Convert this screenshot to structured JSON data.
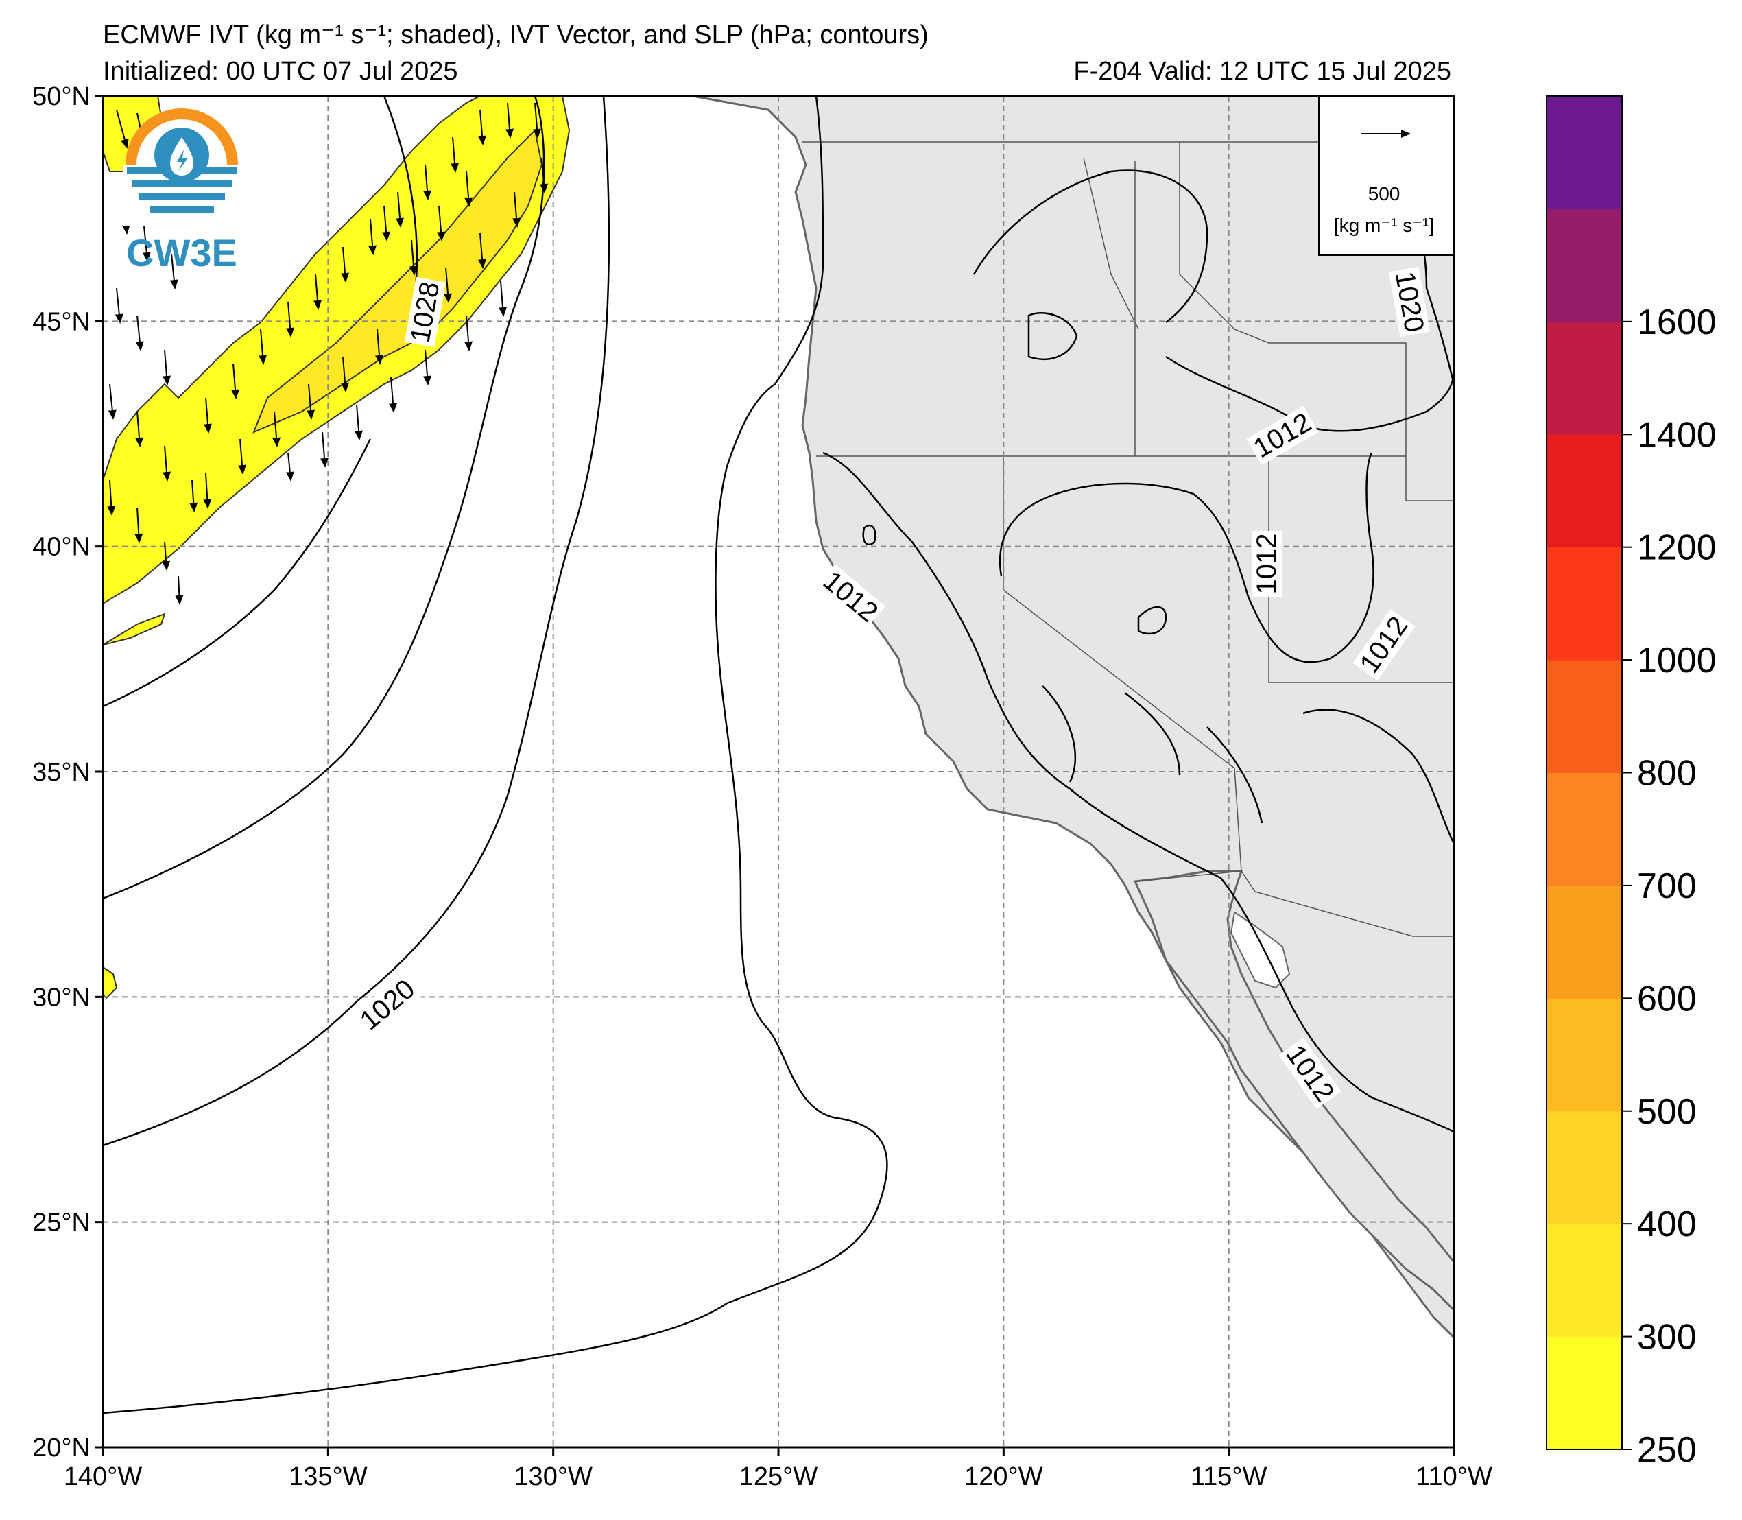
{
  "header": {
    "title_line1": "ECMWF IVT (kg m⁻¹ s⁻¹; shaded), IVT Vector, and SLP (hPa; contours)",
    "initialized": "Initialized: 00 UTC 07 Jul 2025",
    "valid": "F-204  Valid: 12 UTC 15 Jul 2025"
  },
  "map": {
    "lon_range": [
      -140,
      -110
    ],
    "lat_range": [
      20,
      50
    ],
    "lon_ticks": [
      "140°W",
      "135°W",
      "130°W",
      "125°W",
      "120°W",
      "115°W",
      "110°W"
    ],
    "lat_ticks": [
      "50°N",
      "45°N",
      "40°N",
      "35°N",
      "30°N",
      "25°N",
      "20°N"
    ],
    "gridlines": true,
    "land_color": "#e6e6e6",
    "ocean_color": "#ffffff"
  },
  "contour_labels": [
    "1028",
    "1020",
    "1012",
    "1012",
    "1012",
    "1012",
    "1012",
    "1020"
  ],
  "vector_legend": {
    "value": "500",
    "unit": "[kg m⁻¹ s⁻¹]"
  },
  "logo": {
    "text": "CW3E"
  },
  "colorbar": {
    "tick_labels": [
      "250",
      "300",
      "400",
      "500",
      "600",
      "700",
      "800",
      "1000",
      "1200",
      "1400",
      "1600"
    ],
    "colors": [
      "#ffff26",
      "#ffe926",
      "#fed326",
      "#fdba21",
      "#fc9e1d",
      "#fb8423",
      "#fb5f1c",
      "#fc3a1a",
      "#e81d1f",
      "#c01b44",
      "#951c6b",
      "#6c1a90"
    ]
  }
}
